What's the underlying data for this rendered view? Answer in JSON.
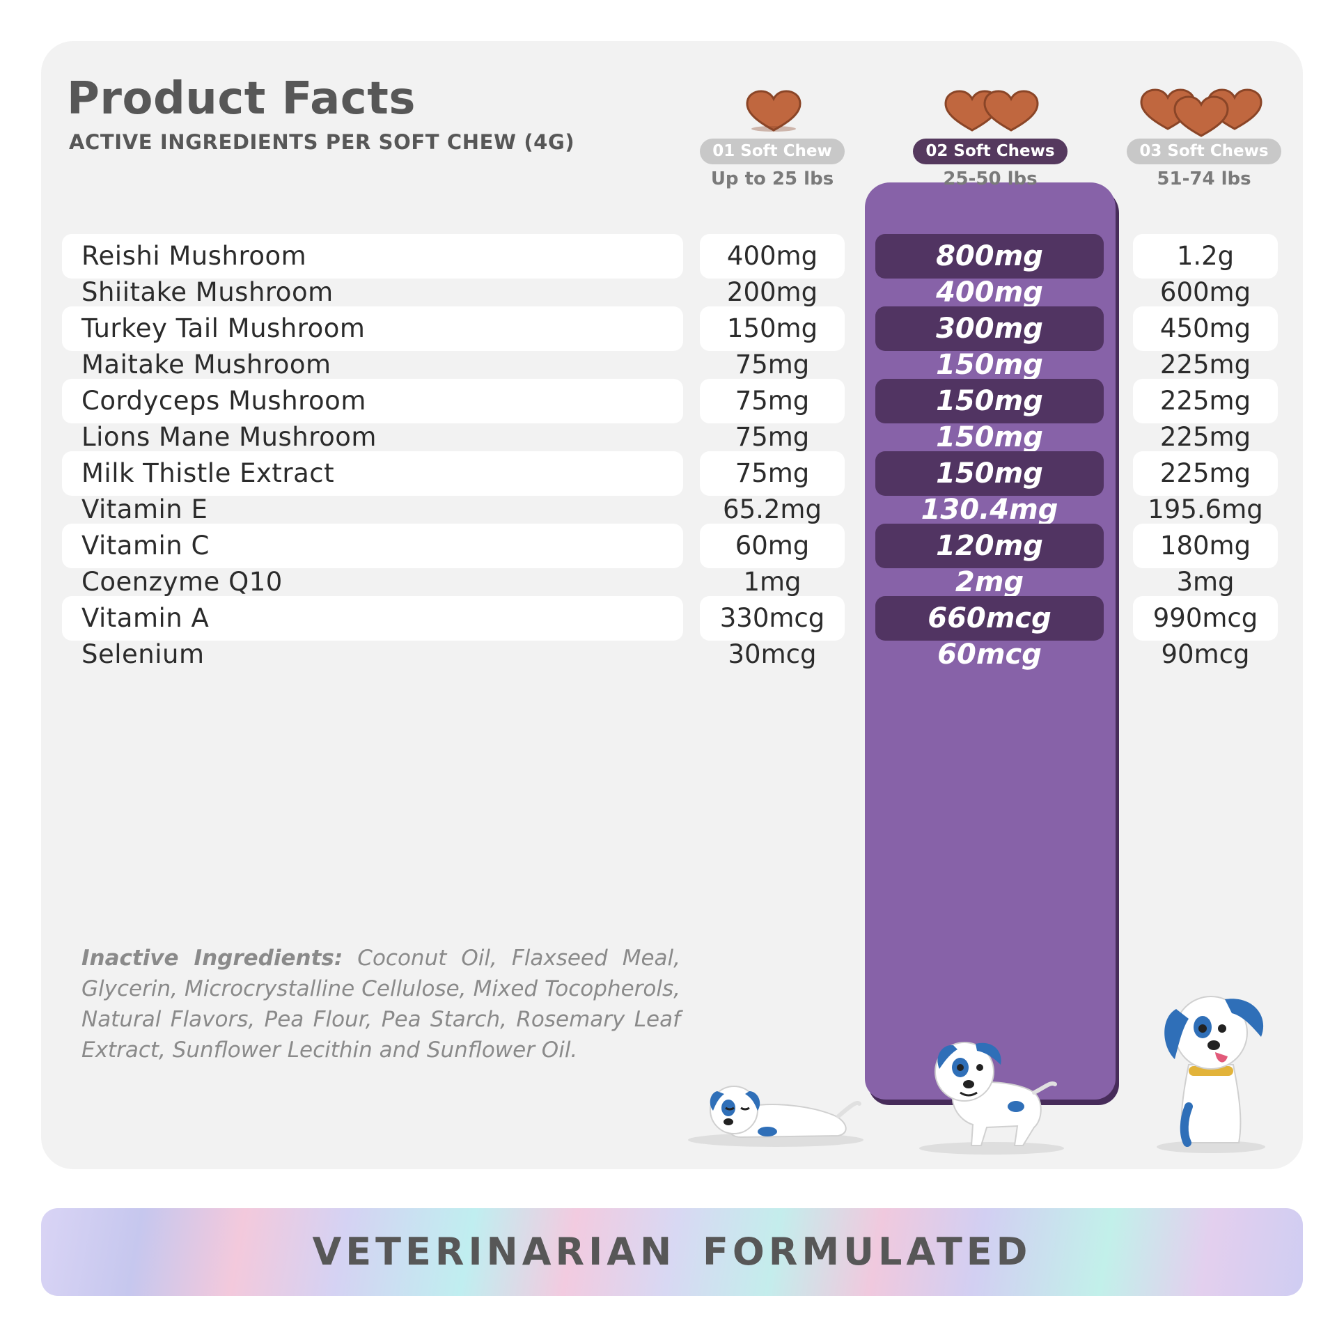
{
  "title": "Product Facts",
  "subtitle": "ACTIVE INGREDIENTS PER SOFT CHEW (4G)",
  "columns": [
    {
      "chews": "01 Soft Chew",
      "weight": "Up to 25 lbs",
      "highlight": false
    },
    {
      "chews": "02 Soft Chews",
      "weight": "25-50 lbs",
      "highlight": true
    },
    {
      "chews": "03 Soft Chews",
      "weight": "51-74 lbs",
      "highlight": false
    }
  ],
  "rows": [
    {
      "name": "Reishi Mushroom",
      "v1": "400mg",
      "v2_num": "800",
      "v2_unit": "mg",
      "v3": "1.2g"
    },
    {
      "name": "Shiitake Mushroom",
      "v1": "200mg",
      "v2_num": "400",
      "v2_unit": "mg",
      "v3": "600mg"
    },
    {
      "name": "Turkey Tail Mushroom",
      "v1": "150mg",
      "v2_num": "300",
      "v2_unit": "mg",
      "v3": "450mg"
    },
    {
      "name": "Maitake Mushroom",
      "v1": "75mg",
      "v2_num": "150",
      "v2_unit": "mg",
      "v3": "225mg"
    },
    {
      "name": "Cordyceps Mushroom",
      "v1": "75mg",
      "v2_num": "150",
      "v2_unit": "mg",
      "v3": "225mg"
    },
    {
      "name": "Lions Mane Mushroom",
      "v1": "75mg",
      "v2_num": "150",
      "v2_unit": "mg",
      "v3": "225mg"
    },
    {
      "name": "Milk Thistle Extract",
      "v1": "75mg",
      "v2_num": "150",
      "v2_unit": "mg",
      "v3": "225mg"
    },
    {
      "name": "Vitamin E",
      "v1": "65.2mg",
      "v2_num": "130.4",
      "v2_unit": "mg",
      "v3": "195.6mg"
    },
    {
      "name": "Vitamin C",
      "v1": "60mg",
      "v2_num": "120",
      "v2_unit": "mg",
      "v3": "180mg"
    },
    {
      "name": "Coenzyme Q10",
      "v1": "1mg",
      "v2_num": "2",
      "v2_unit": "mg",
      "v3": "3mg"
    },
    {
      "name": "Vitamin A",
      "v1": "330mcg",
      "v2_num": "660",
      "v2_unit": "mcg",
      "v3": "990mcg"
    },
    {
      "name": "Selenium",
      "v1": "30mcg",
      "v2_num": "60",
      "v2_unit": "mcg",
      "v3": "90mcg"
    }
  ],
  "inactive": {
    "label": "Inactive Ingredients:",
    "text": "Coconut Oil, Flaxseed Meal, Glycerin, Microcrystalline Cellulose, Mixed Tocopherols, Natural Flavors, Pea Flour, Pea Starch, Rosemary Leaf Extract, Sunflower Lecithin and Sunflower Oil."
  },
  "banner": "VETERINARIAN FORMULATED",
  "colors": {
    "card_bg": "#f2f2f2",
    "purple": "#8762a8",
    "purple_dark": "#513462",
    "text_dark": "#2b2b2b",
    "text_gray": "#575757",
    "chew_brown": "#c0673f",
    "dog_blue": "#2f6fb8"
  },
  "icons": [
    "heart-chew-icon",
    "sleeping-dog-icon",
    "walking-dog-icon",
    "sitting-dog-icon"
  ]
}
